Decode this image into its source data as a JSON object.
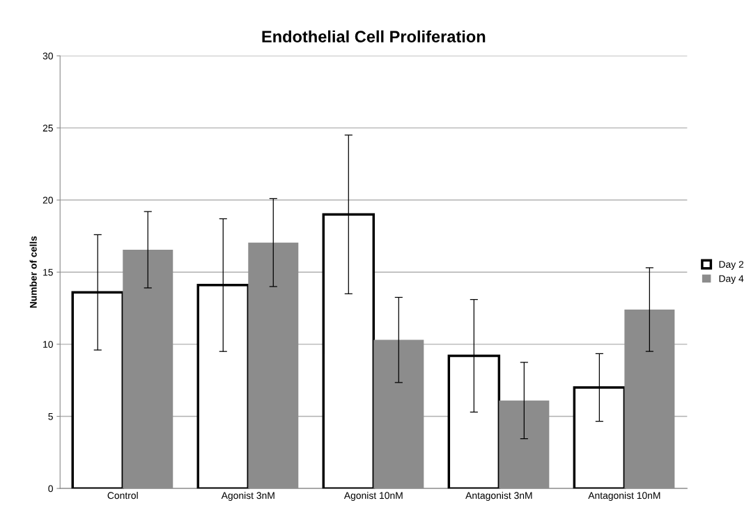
{
  "chart_data": {
    "type": "bar",
    "title": "Endothelial Cell Proliferation",
    "ylabel": "Number of cells",
    "categories": [
      "Control",
      "Agonist 3nM",
      "Agonist 10nM",
      "Antagonist 3nM",
      "Antagonist 10nM"
    ],
    "series": [
      {
        "name": "Day 2",
        "color": "#ffffff",
        "values": [
          13.6,
          14.1,
          19.0,
          9.2,
          7.0
        ],
        "errors": [
          4.0,
          4.6,
          5.5,
          3.9,
          2.35
        ]
      },
      {
        "name": "Day 4",
        "color": "#8c8c8c",
        "values": [
          16.55,
          17.05,
          10.3,
          6.1,
          12.4
        ],
        "errors": [
          2.65,
          3.05,
          2.95,
          2.65,
          2.9
        ]
      }
    ],
    "ylim": [
      0,
      30
    ],
    "yticks": [
      0,
      5,
      10,
      15,
      20,
      25,
      30
    ],
    "grid": "y",
    "legend": "right"
  }
}
